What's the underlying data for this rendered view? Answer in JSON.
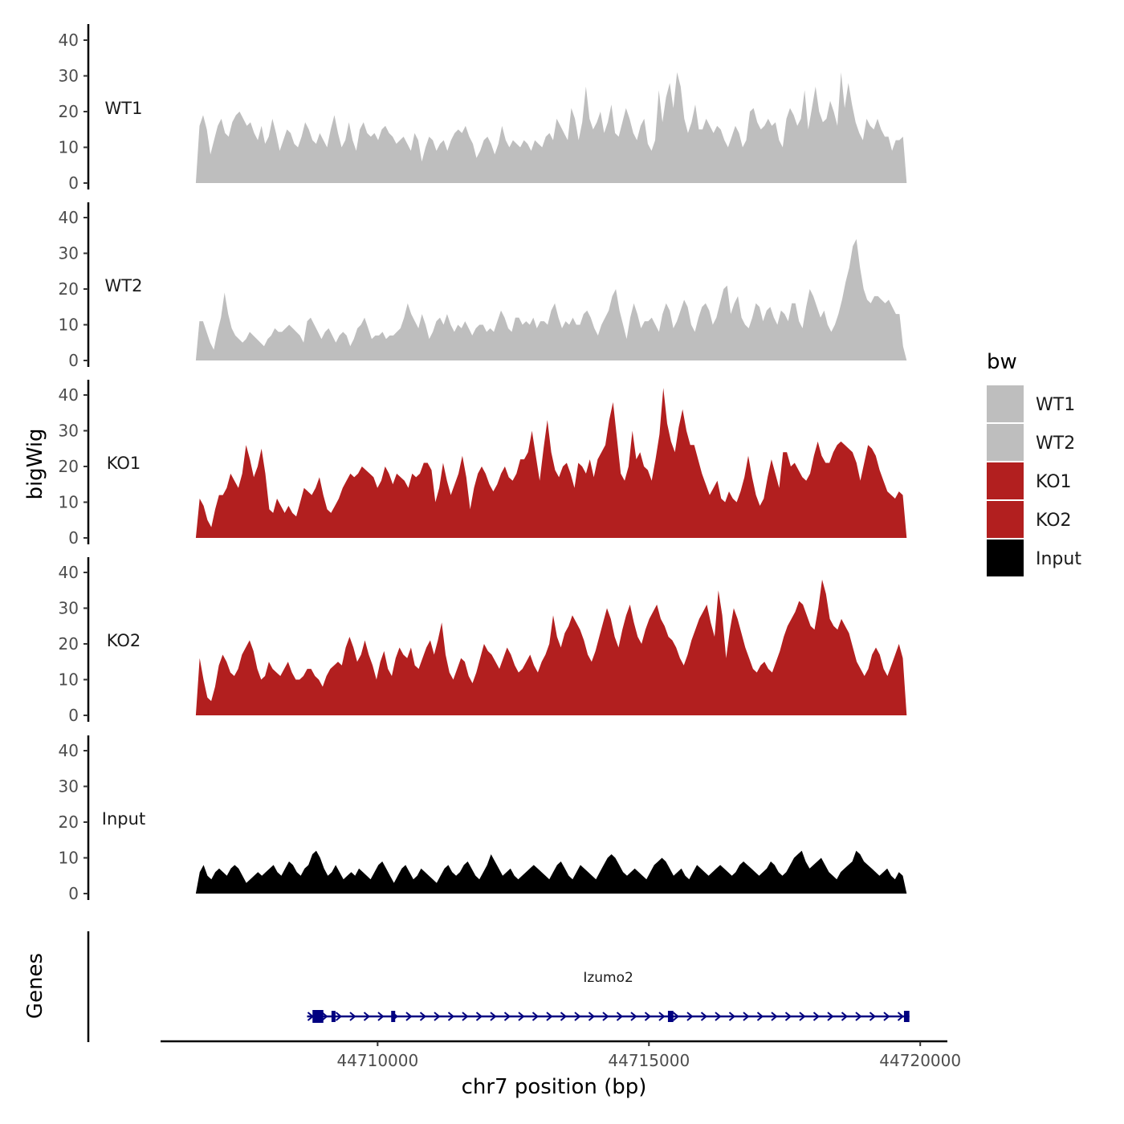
{
  "chart_data": {
    "type": "area",
    "description_axis": {
      "xlabel": "chr7 position (bp)",
      "ylabel": "bigWig",
      "genes_label": "Genes",
      "xlim": [
        44706000,
        44720500
      ],
      "x_ticks": [
        44710000,
        44715000,
        44720000
      ],
      "x_tick_labels": [
        "44710000",
        "44715000",
        "44720000"
      ],
      "ylim": [
        0,
        44
      ],
      "y_ticks": [
        0,
        10,
        20,
        30,
        40
      ],
      "y_tick_labels": [
        "0",
        "10",
        "20",
        "30",
        "40"
      ]
    },
    "legend": {
      "title": "bw",
      "position": "right",
      "items": [
        {
          "label": "WT1",
          "color": "#bebebe"
        },
        {
          "label": "WT2",
          "color": "#bebebe"
        },
        {
          "label": "KO1",
          "color": "#b21f1f"
        },
        {
          "label": "KO2",
          "color": "#b21f1f"
        },
        {
          "label": "Input",
          "color": "#000000"
        }
      ]
    },
    "series": [
      {
        "name": "WT1",
        "color": "#bebebe",
        "x_start": 44706650,
        "x_end": 44719750,
        "values": [
          0,
          16,
          19,
          15,
          8,
          12,
          16,
          18,
          14,
          13,
          17,
          19,
          20,
          18,
          16,
          17,
          14,
          12,
          16,
          11,
          13,
          18,
          14,
          9,
          12,
          15,
          14,
          11,
          10,
          13,
          17,
          15,
          12,
          11,
          14,
          12,
          10,
          15,
          19,
          14,
          10,
          12,
          17,
          12,
          9,
          15,
          17,
          14,
          13,
          14,
          12,
          15,
          16,
          14,
          13,
          11,
          12,
          13,
          11,
          9,
          14,
          12,
          6,
          10,
          13,
          12,
          9,
          11,
          12,
          9,
          12,
          14,
          15,
          14,
          16,
          13,
          11,
          7,
          9,
          12,
          13,
          11,
          8,
          11,
          16,
          12,
          10,
          12,
          11,
          10,
          12,
          11,
          9,
          12,
          11,
          10,
          13,
          14,
          12,
          18,
          16,
          14,
          12,
          21,
          18,
          12,
          17,
          27,
          18,
          15,
          17,
          20,
          14,
          17,
          22,
          14,
          13,
          17,
          21,
          18,
          14,
          12,
          16,
          18,
          11,
          9,
          12,
          26,
          17,
          24,
          28,
          21,
          31,
          27,
          18,
          14,
          17,
          22,
          15,
          15,
          18,
          16,
          14,
          16,
          15,
          12,
          10,
          13,
          16,
          14,
          10,
          12,
          20,
          21,
          17,
          15,
          16,
          18,
          16,
          17,
          12,
          10,
          18,
          21,
          19,
          16,
          18,
          26,
          15,
          21,
          27,
          20,
          17,
          18,
          23,
          20,
          16,
          31,
          21,
          28,
          22,
          17,
          14,
          12,
          18,
          16,
          15,
          18,
          15,
          13,
          13,
          9,
          12,
          12,
          13,
          0
        ],
        "y_domain_note": "coverage values (reads)"
      },
      {
        "name": "WT2",
        "color": "#bebebe",
        "x_start": 44706650,
        "x_end": 44719750,
        "values": [
          0,
          11,
          11,
          8,
          5,
          3,
          8,
          12,
          19,
          13,
          9,
          7,
          6,
          5,
          6,
          8,
          7,
          6,
          5,
          4,
          6,
          7,
          9,
          8,
          8,
          9,
          10,
          9,
          8,
          7,
          5,
          11,
          12,
          10,
          8,
          6,
          8,
          9,
          7,
          5,
          7,
          8,
          7,
          4,
          6,
          9,
          10,
          12,
          9,
          6,
          7,
          7,
          8,
          6,
          7,
          7,
          8,
          9,
          12,
          16,
          13,
          11,
          9,
          13,
          10,
          6,
          8,
          11,
          12,
          10,
          13,
          10,
          8,
          10,
          9,
          11,
          9,
          7,
          9,
          10,
          10,
          8,
          9,
          8,
          11,
          14,
          12,
          9,
          8,
          12,
          12,
          10,
          11,
          10,
          12,
          9,
          11,
          11,
          10,
          14,
          16,
          12,
          9,
          11,
          10,
          12,
          10,
          10,
          13,
          14,
          12,
          9,
          7,
          10,
          12,
          14,
          18,
          20,
          14,
          10,
          6,
          12,
          16,
          13,
          9,
          11,
          11,
          12,
          10,
          8,
          13,
          16,
          14,
          9,
          11,
          14,
          17,
          15,
          10,
          8,
          12,
          15,
          16,
          14,
          10,
          12,
          16,
          20,
          21,
          13,
          16,
          18,
          12,
          10,
          9,
          12,
          16,
          15,
          11,
          14,
          15,
          12,
          10,
          14,
          13,
          11,
          16,
          16,
          11,
          9,
          15,
          20,
          18,
          15,
          12,
          14,
          10,
          8,
          10,
          13,
          17,
          22,
          26,
          32,
          34,
          26,
          20,
          17,
          16,
          18,
          18,
          17,
          16,
          17,
          15,
          13,
          13,
          4,
          0
        ],
        "y_domain_note": "coverage values (reads)"
      },
      {
        "name": "KO1",
        "color": "#b21f1f",
        "x_start": 44706650,
        "x_end": 44719750,
        "values": [
          0,
          11,
          9,
          5,
          3,
          8,
          12,
          12,
          14,
          18,
          16,
          14,
          18,
          26,
          22,
          17,
          20,
          25,
          18,
          8,
          7,
          11,
          9,
          7,
          9,
          7,
          6,
          10,
          14,
          13,
          12,
          14,
          17,
          12,
          8,
          7,
          9,
          11,
          14,
          16,
          18,
          17,
          18,
          20,
          19,
          18,
          17,
          14,
          16,
          20,
          18,
          15,
          18,
          17,
          16,
          14,
          18,
          17,
          18,
          21,
          21,
          19,
          10,
          14,
          21,
          16,
          12,
          15,
          18,
          23,
          17,
          8,
          14,
          18,
          20,
          18,
          15,
          13,
          15,
          18,
          20,
          17,
          16,
          18,
          22,
          22,
          24,
          30,
          23,
          16,
          25,
          33,
          24,
          19,
          17,
          20,
          21,
          18,
          14,
          21,
          20,
          18,
          22,
          17,
          22,
          24,
          26,
          33,
          38,
          28,
          18,
          16,
          20,
          30,
          22,
          24,
          20,
          19,
          16,
          22,
          29,
          42,
          32,
          27,
          24,
          31,
          36,
          30,
          26,
          26,
          22,
          18,
          15,
          12,
          14,
          16,
          11,
          10,
          13,
          11,
          10,
          13,
          17,
          23,
          17,
          12,
          9,
          11,
          17,
          22,
          18,
          14,
          24,
          24,
          20,
          21,
          19,
          17,
          16,
          18,
          23,
          27,
          23,
          21,
          21,
          24,
          26,
          27,
          26,
          25,
          24,
          21,
          16,
          21,
          26,
          25,
          23,
          19,
          16,
          13,
          12,
          11,
          13,
          12,
          0
        ],
        "y_domain_note": "coverage values (reads)"
      },
      {
        "name": "KO2",
        "color": "#b21f1f",
        "x_start": 44706650,
        "x_end": 44719750,
        "values": [
          0,
          16,
          10,
          5,
          4,
          8,
          14,
          17,
          15,
          12,
          11,
          13,
          17,
          19,
          21,
          18,
          13,
          10,
          11,
          15,
          13,
          12,
          11,
          13,
          15,
          12,
          10,
          10,
          11,
          13,
          13,
          11,
          10,
          8,
          11,
          13,
          14,
          15,
          14,
          19,
          22,
          19,
          15,
          17,
          21,
          17,
          14,
          10,
          15,
          18,
          13,
          11,
          16,
          19,
          17,
          16,
          19,
          14,
          13,
          16,
          19,
          21,
          17,
          21,
          26,
          17,
          12,
          10,
          13,
          16,
          15,
          11,
          9,
          12,
          16,
          20,
          18,
          17,
          15,
          13,
          16,
          19,
          17,
          14,
          12,
          13,
          15,
          17,
          14,
          12,
          15,
          17,
          20,
          28,
          22,
          19,
          23,
          25,
          28,
          26,
          24,
          21,
          17,
          15,
          18,
          22,
          26,
          30,
          27,
          22,
          19,
          24,
          28,
          31,
          26,
          22,
          20,
          24,
          27,
          29,
          31,
          27,
          25,
          22,
          21,
          19,
          16,
          14,
          17,
          21,
          24,
          27,
          29,
          31,
          26,
          22,
          35,
          28,
          16,
          24,
          30,
          27,
          23,
          19,
          16,
          13,
          12,
          14,
          15,
          13,
          12,
          15,
          18,
          22,
          25,
          27,
          29,
          32,
          31,
          28,
          25,
          24,
          30,
          38,
          34,
          27,
          25,
          24,
          27,
          25,
          23,
          19,
          15,
          13,
          11,
          13,
          17,
          19,
          17,
          13,
          11,
          14,
          17,
          20,
          16,
          0
        ],
        "y_domain_note": "coverage values (reads)"
      },
      {
        "name": "Input",
        "color": "#000000",
        "x_start": 44706650,
        "x_end": 44719750,
        "values": [
          0,
          6,
          8,
          5,
          4,
          6,
          7,
          6,
          5,
          7,
          8,
          7,
          5,
          3,
          4,
          5,
          6,
          5,
          6,
          7,
          8,
          6,
          5,
          7,
          9,
          8,
          6,
          5,
          7,
          8,
          11,
          12,
          10,
          7,
          5,
          6,
          8,
          6,
          4,
          5,
          6,
          5,
          7,
          6,
          5,
          4,
          6,
          8,
          9,
          7,
          5,
          3,
          5,
          7,
          8,
          6,
          4,
          5,
          7,
          6,
          5,
          4,
          3,
          5,
          7,
          8,
          6,
          5,
          6,
          8,
          9,
          7,
          5,
          4,
          6,
          8,
          11,
          9,
          7,
          5,
          6,
          7,
          5,
          4,
          5,
          6,
          7,
          8,
          7,
          6,
          5,
          4,
          6,
          8,
          9,
          7,
          5,
          4,
          6,
          8,
          7,
          6,
          5,
          4,
          6,
          8,
          10,
          11,
          10,
          8,
          6,
          5,
          6,
          7,
          6,
          5,
          4,
          6,
          8,
          9,
          10,
          9,
          7,
          5,
          6,
          7,
          5,
          4,
          6,
          8,
          7,
          6,
          5,
          6,
          7,
          8,
          7,
          6,
          5,
          6,
          8,
          9,
          8,
          7,
          6,
          5,
          6,
          7,
          9,
          8,
          6,
          5,
          6,
          8,
          10,
          11,
          12,
          9,
          7,
          8,
          9,
          10,
          8,
          6,
          5,
          4,
          6,
          7,
          8,
          9,
          12,
          11,
          9,
          8,
          7,
          6,
          5,
          6,
          7,
          5,
          4,
          6,
          5,
          0
        ],
        "y_domain_note": "coverage values (reads)"
      }
    ],
    "genes": [
      {
        "name": "Izumo2",
        "label": "Izumo2",
        "strand": "+",
        "color": "#000080",
        "start": 44708700,
        "end": 44719800,
        "exons": [
          [
            44708800,
            44709000
          ],
          [
            44709150,
            44709200
          ],
          [
            44710250,
            44710320
          ],
          [
            44715350,
            44715450
          ],
          [
            44719700,
            44719800
          ]
        ]
      }
    ]
  }
}
